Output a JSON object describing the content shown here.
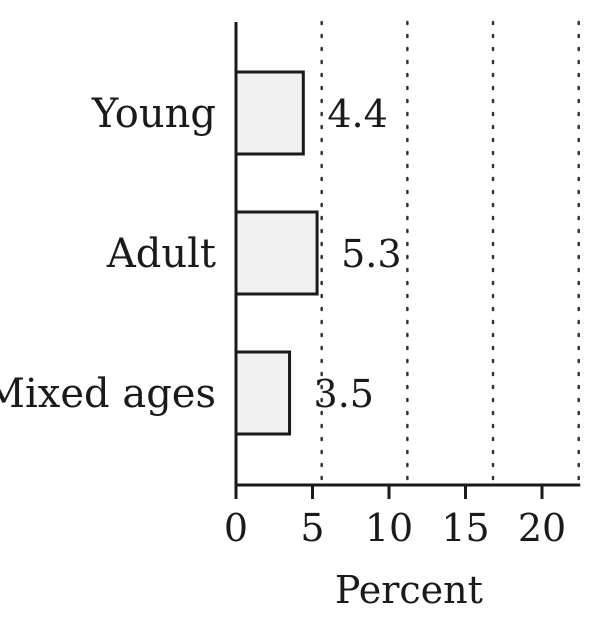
{
  "chart_data": {
    "type": "bar",
    "orientation": "horizontal",
    "categories": [
      "Young",
      "Adult",
      "Mixed ages"
    ],
    "values": [
      4.4,
      5.3,
      3.5
    ],
    "value_labels": [
      "4.4",
      "5.3",
      "3.5"
    ],
    "xlabel": "Percent",
    "ylabel": "",
    "title": "",
    "xlim": [
      0,
      22.5
    ],
    "xticks": [
      0,
      5,
      10,
      15,
      20
    ],
    "xtick_labels": [
      "0",
      "5",
      "10",
      "15",
      "20"
    ],
    "grid": "vertical dotted lines",
    "legend": "none",
    "colors": {
      "bar_fill": "#f0f0f0",
      "bar_stroke": "#1a1a1a"
    }
  }
}
